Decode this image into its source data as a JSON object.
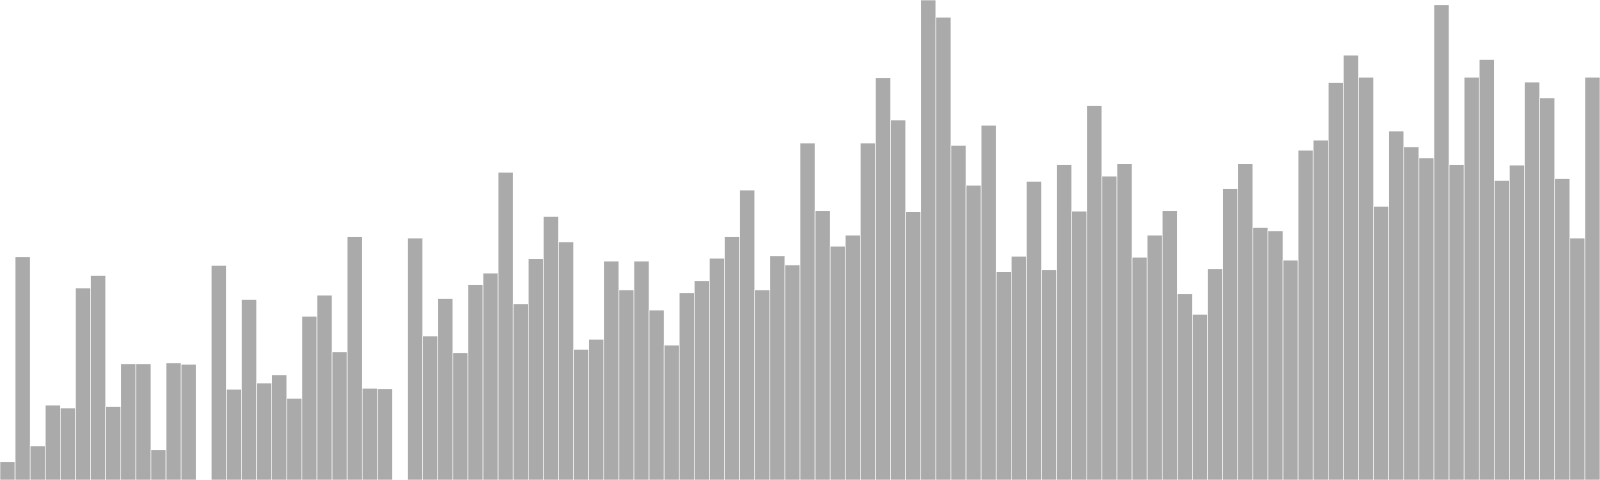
{
  "chart_data": {
    "type": "bar",
    "title": "",
    "xlabel": "",
    "ylabel": "",
    "grid": false,
    "ylim": [
      0,
      100
    ],
    "colors": {
      "bar": "#aaaaaa",
      "bar_edge": "#ffffff",
      "background": "#ffffff"
    },
    "values": [
      3.8,
      46.5,
      7.1,
      15.6,
      15.0,
      40.0,
      42.6,
      15.3,
      24.2,
      24.2,
      6.3,
      24.4,
      24.1,
      0.0,
      44.7,
      18.9,
      37.6,
      20.2,
      21.9,
      17.0,
      34.1,
      38.5,
      26.7,
      50.7,
      19.1,
      19.0,
      0.0,
      50.4,
      30.0,
      37.8,
      26.5,
      40.7,
      43.1,
      64.1,
      36.7,
      46.1,
      54.9,
      49.6,
      27.2,
      29.3,
      45.6,
      39.6,
      45.6,
      35.4,
      28.1,
      39.0,
      41.5,
      46.2,
      50.7,
      60.4,
      39.6,
      46.7,
      44.8,
      70.2,
      56.1,
      48.7,
      51.0,
      70.2,
      83.8,
      75.0,
      55.9,
      100.0,
      96.4,
      69.7,
      61.4,
      73.9,
      43.4,
      46.6,
      62.2,
      43.8,
      65.7,
      56.0,
      78.0,
      63.3,
      65.9,
      46.4,
      51.0,
      56.1,
      38.8,
      34.5,
      44.0,
      60.7,
      65.9,
      52.6,
      51.9,
      45.8,
      68.7,
      70.8,
      82.8,
      88.5,
      83.9,
      57.0,
      72.7,
      69.4,
      67.1,
      99.0,
      65.7,
      83.9,
      87.6,
      62.4,
      65.6,
      82.9,
      79.6,
      62.8,
      50.4,
      83.9
    ]
  }
}
